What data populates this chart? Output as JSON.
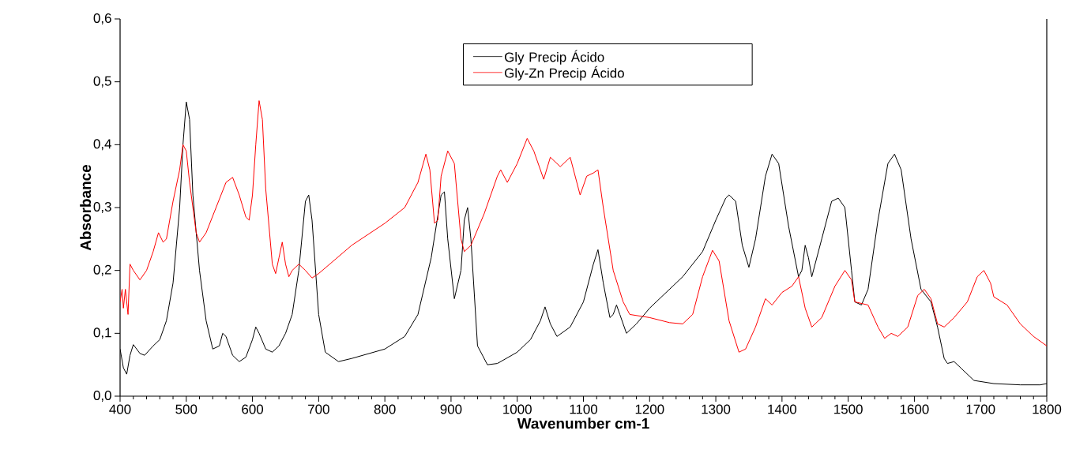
{
  "chart_data": {
    "type": "line",
    "xlabel": "Wavenumber cm-1",
    "ylabel": "Absorbance",
    "xlim": [
      400,
      1800
    ],
    "ylim": [
      0,
      0.6
    ],
    "xticks": [
      400,
      500,
      600,
      700,
      800,
      900,
      1000,
      1100,
      1200,
      1300,
      1400,
      1500,
      1600,
      1700,
      1800
    ],
    "yticks": [
      {
        "value": 0,
        "label": "0,0"
      },
      {
        "value": 0.1,
        "label": "0,1"
      },
      {
        "value": 0.2,
        "label": "0,2"
      },
      {
        "value": 0.3,
        "label": "0,3"
      },
      {
        "value": 0.4,
        "label": "0,4"
      },
      {
        "value": 0.5,
        "label": "0,5"
      },
      {
        "value": 0.6,
        "label": "0,6"
      }
    ],
    "legend": "top",
    "grid": false,
    "marker": "none",
    "line_style": "solid",
    "series": [
      {
        "name": "Gly Precip Ácido",
        "color": "#000000",
        "x": [
          400,
          405,
          410,
          415,
          420,
          430,
          437,
          450,
          460,
          470,
          480,
          490,
          495,
          500,
          505,
          510,
          520,
          530,
          540,
          550,
          555,
          560,
          570,
          580,
          590,
          600,
          605,
          610,
          620,
          630,
          640,
          650,
          660,
          670,
          680,
          685,
          690,
          700,
          710,
          730,
          750,
          800,
          830,
          850,
          870,
          885,
          890,
          895,
          905,
          915,
          920,
          925,
          930,
          940,
          955,
          970,
          1000,
          1020,
          1035,
          1042,
          1050,
          1060,
          1080,
          1100,
          1115,
          1122,
          1130,
          1140,
          1145,
          1150,
          1155,
          1165,
          1180,
          1200,
          1250,
          1280,
          1300,
          1315,
          1320,
          1330,
          1340,
          1350,
          1360,
          1375,
          1385,
          1395,
          1410,
          1425,
          1430,
          1435,
          1440,
          1445,
          1460,
          1475,
          1485,
          1495,
          1505,
          1510,
          1520,
          1530,
          1545,
          1560,
          1570,
          1580,
          1595,
          1610,
          1625,
          1635,
          1645,
          1650,
          1660,
          1670,
          1690,
          1720,
          1760,
          1790,
          1800
        ],
        "values": [
          0.075,
          0.045,
          0.035,
          0.065,
          0.082,
          0.068,
          0.065,
          0.08,
          0.09,
          0.12,
          0.18,
          0.3,
          0.4,
          0.468,
          0.44,
          0.32,
          0.2,
          0.12,
          0.075,
          0.08,
          0.1,
          0.095,
          0.065,
          0.055,
          0.062,
          0.09,
          0.11,
          0.1,
          0.075,
          0.07,
          0.08,
          0.1,
          0.13,
          0.2,
          0.31,
          0.32,
          0.28,
          0.13,
          0.07,
          0.055,
          0.06,
          0.075,
          0.095,
          0.13,
          0.22,
          0.32,
          0.325,
          0.25,
          0.155,
          0.2,
          0.28,
          0.3,
          0.25,
          0.08,
          0.05,
          0.052,
          0.07,
          0.09,
          0.12,
          0.142,
          0.115,
          0.095,
          0.11,
          0.15,
          0.21,
          0.233,
          0.18,
          0.125,
          0.13,
          0.145,
          0.13,
          0.1,
          0.115,
          0.14,
          0.19,
          0.23,
          0.28,
          0.315,
          0.32,
          0.31,
          0.24,
          0.205,
          0.25,
          0.35,
          0.385,
          0.37,
          0.27,
          0.19,
          0.2,
          0.24,
          0.22,
          0.19,
          0.25,
          0.31,
          0.315,
          0.3,
          0.2,
          0.15,
          0.145,
          0.17,
          0.28,
          0.37,
          0.385,
          0.36,
          0.25,
          0.17,
          0.15,
          0.11,
          0.06,
          0.052,
          0.055,
          0.045,
          0.025,
          0.02,
          0.018,
          0.018,
          0.02
        ]
      },
      {
        "name": "Gly-Zn Precip Ácido",
        "color": "#ff0000",
        "x": [
          400,
          403,
          405,
          408,
          412,
          415,
          420,
          430,
          440,
          450,
          458,
          465,
          470,
          480,
          490,
          495,
          500,
          505,
          515,
          520,
          530,
          545,
          560,
          570,
          580,
          590,
          595,
          600,
          605,
          610,
          615,
          620,
          630,
          635,
          640,
          645,
          650,
          655,
          660,
          670,
          680,
          690,
          700,
          750,
          800,
          830,
          850,
          862,
          868,
          875,
          880,
          885,
          895,
          905,
          915,
          920,
          930,
          950,
          970,
          975,
          985,
          1000,
          1015,
          1025,
          1040,
          1050,
          1065,
          1080,
          1095,
          1105,
          1115,
          1122,
          1130,
          1145,
          1160,
          1170,
          1200,
          1230,
          1250,
          1265,
          1280,
          1295,
          1305,
          1320,
          1335,
          1345,
          1360,
          1375,
          1385,
          1400,
          1415,
          1425,
          1435,
          1445,
          1460,
          1480,
          1495,
          1505,
          1510,
          1530,
          1545,
          1555,
          1565,
          1575,
          1590,
          1605,
          1615,
          1625,
          1635,
          1645,
          1660,
          1680,
          1695,
          1705,
          1715,
          1720,
          1740,
          1760,
          1780,
          1800
        ],
        "values": [
          0.15,
          0.17,
          0.14,
          0.17,
          0.13,
          0.21,
          0.2,
          0.185,
          0.2,
          0.23,
          0.26,
          0.245,
          0.25,
          0.31,
          0.36,
          0.4,
          0.39,
          0.34,
          0.26,
          0.245,
          0.26,
          0.3,
          0.34,
          0.348,
          0.32,
          0.285,
          0.28,
          0.32,
          0.4,
          0.47,
          0.44,
          0.33,
          0.21,
          0.195,
          0.22,
          0.245,
          0.21,
          0.19,
          0.2,
          0.21,
          0.2,
          0.188,
          0.195,
          0.24,
          0.275,
          0.3,
          0.34,
          0.385,
          0.36,
          0.275,
          0.28,
          0.35,
          0.39,
          0.37,
          0.25,
          0.23,
          0.24,
          0.29,
          0.35,
          0.36,
          0.34,
          0.37,
          0.41,
          0.39,
          0.345,
          0.38,
          0.365,
          0.38,
          0.32,
          0.35,
          0.355,
          0.36,
          0.3,
          0.2,
          0.15,
          0.13,
          0.125,
          0.117,
          0.115,
          0.13,
          0.19,
          0.232,
          0.215,
          0.12,
          0.07,
          0.075,
          0.11,
          0.155,
          0.145,
          0.165,
          0.175,
          0.19,
          0.14,
          0.11,
          0.125,
          0.175,
          0.2,
          0.185,
          0.15,
          0.145,
          0.11,
          0.092,
          0.1,
          0.095,
          0.11,
          0.16,
          0.17,
          0.155,
          0.115,
          0.11,
          0.125,
          0.15,
          0.19,
          0.2,
          0.18,
          0.158,
          0.145,
          0.115,
          0.095,
          0.08
        ]
      }
    ]
  }
}
